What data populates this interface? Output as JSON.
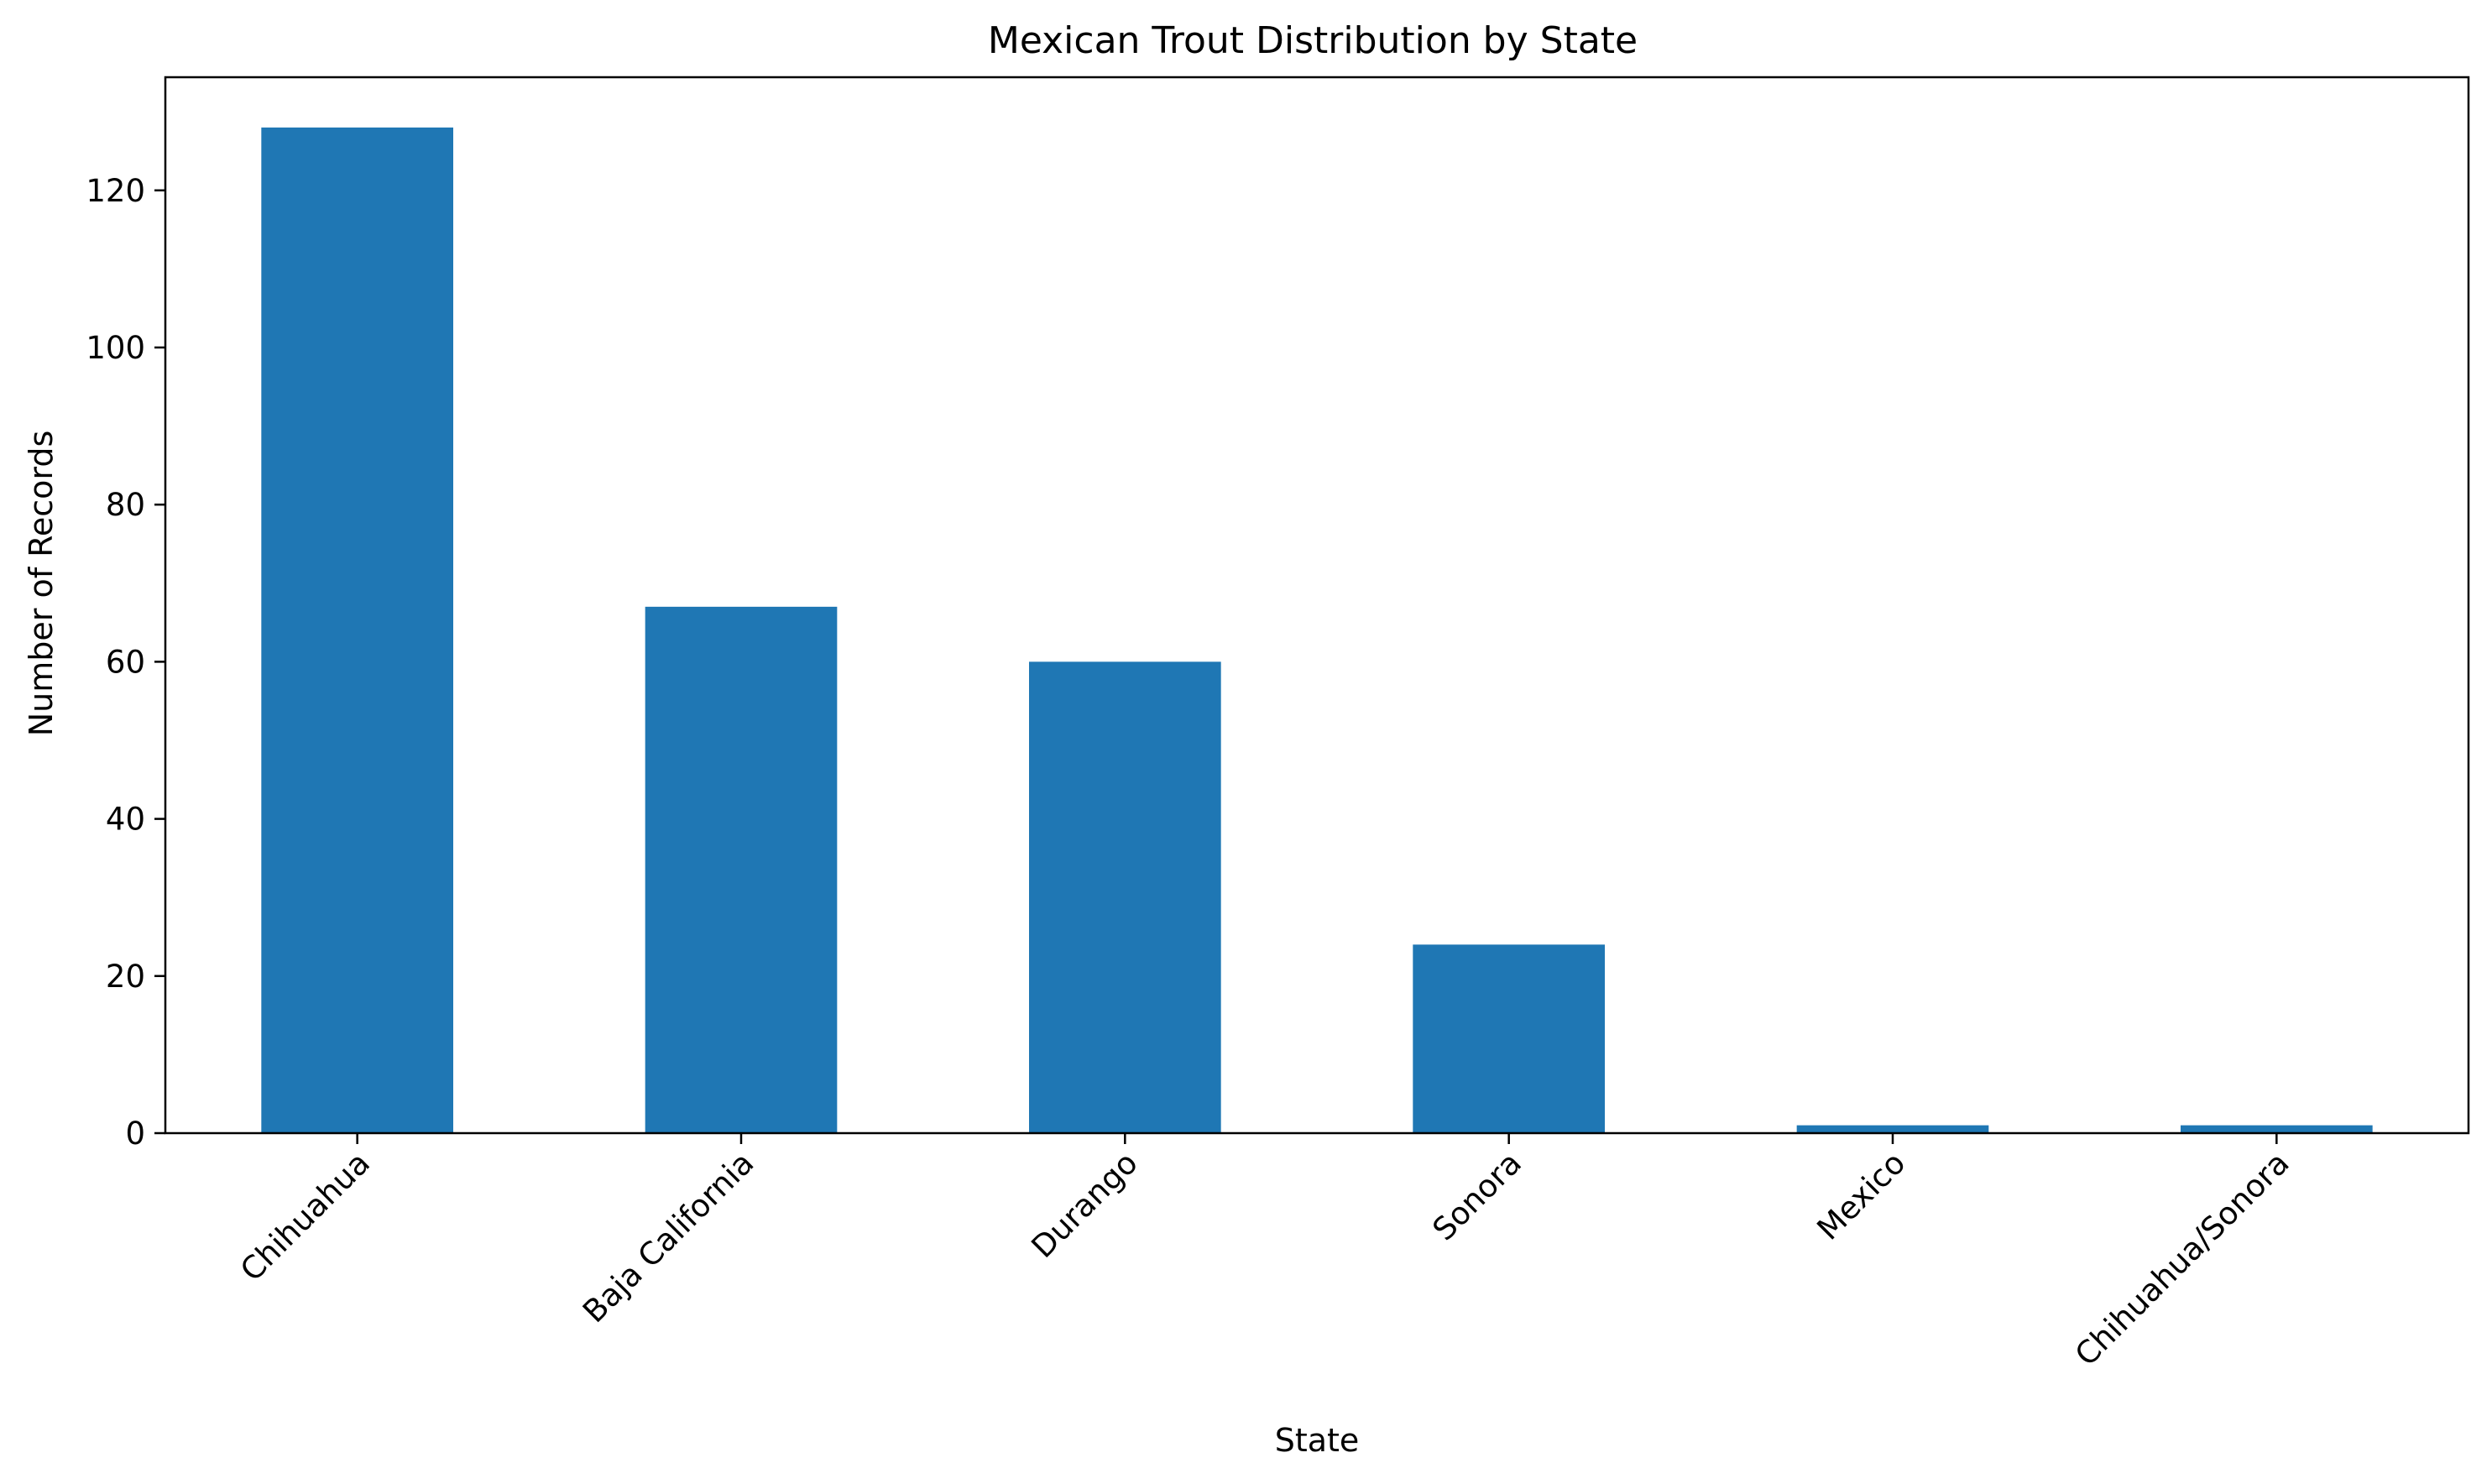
{
  "chart_data": {
    "type": "bar",
    "title": "Mexican Trout Distribution by State",
    "xlabel": "State",
    "ylabel": "Number of Records",
    "categories": [
      "Chihuahua",
      "Baja California",
      "Durango",
      "Sonora",
      "Mexico",
      "Chihuahua/Sonora"
    ],
    "values": [
      128,
      67,
      60,
      24,
      1,
      1
    ],
    "ylim": [
      0,
      134.4
    ],
    "yticks": [
      0,
      20,
      40,
      60,
      80,
      100,
      120
    ],
    "ytick_labels": [
      "0",
      "20",
      "40",
      "60",
      "80",
      "100",
      "120"
    ],
    "grid": false,
    "legend": "none",
    "bar_color": "#1f77b4",
    "xtick_rotation_deg": 45
  }
}
